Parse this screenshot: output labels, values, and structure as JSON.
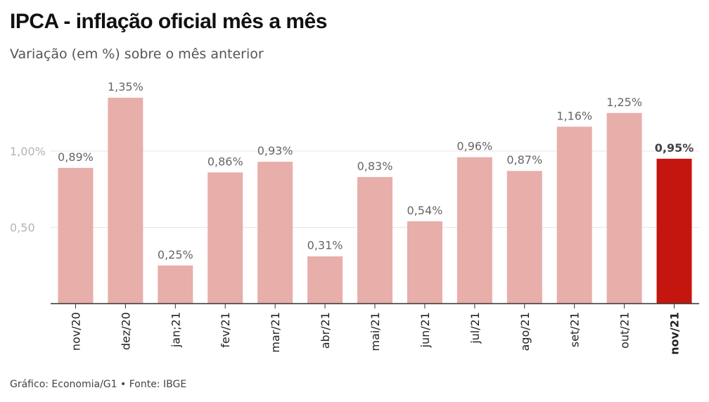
{
  "header": {
    "title": "IPCA - inflação oficial mês a mês",
    "subtitle": "Variação (em %) sobre o mês anterior"
  },
  "footer": {
    "source": "Gráfico: Economia/G1 • Fonte: IBGE"
  },
  "colors": {
    "bar": "#e8aeaa",
    "highlight_bar": "#c4160e",
    "gridline": "#e6e6e6",
    "axis": "#333333"
  },
  "chart_data": {
    "type": "bar",
    "title": "IPCA - inflação oficial mês a mês",
    "subtitle": "Variação (em %) sobre o mês anterior",
    "categories": [
      "nov/20",
      "dez/20",
      "jan;21",
      "fev/21",
      "mar/21",
      "abr/21",
      "mai/21",
      "jun/21",
      "jul/21",
      "ago/21",
      "set/21",
      "out/21",
      "nov/21"
    ],
    "values": [
      0.89,
      1.35,
      0.25,
      0.86,
      0.93,
      0.31,
      0.83,
      0.54,
      0.96,
      0.87,
      1.16,
      1.25,
      0.95
    ],
    "data_labels": [
      "0,89%",
      "1,35%",
      "0,25%",
      "0,86%",
      "0,93%",
      "0,31%",
      "0,83%",
      "0,54%",
      "0,96%",
      "0,87%",
      "1,16%",
      "1,25%",
      "0,95%"
    ],
    "highlight_index": 12,
    "yticks": [
      {
        "value": 0.5,
        "label": "0,50"
      },
      {
        "value": 1.0,
        "label": "1,00%"
      }
    ],
    "ylim": [
      0,
      1.4
    ],
    "grid": true,
    "xlabel": "",
    "ylabel": ""
  }
}
